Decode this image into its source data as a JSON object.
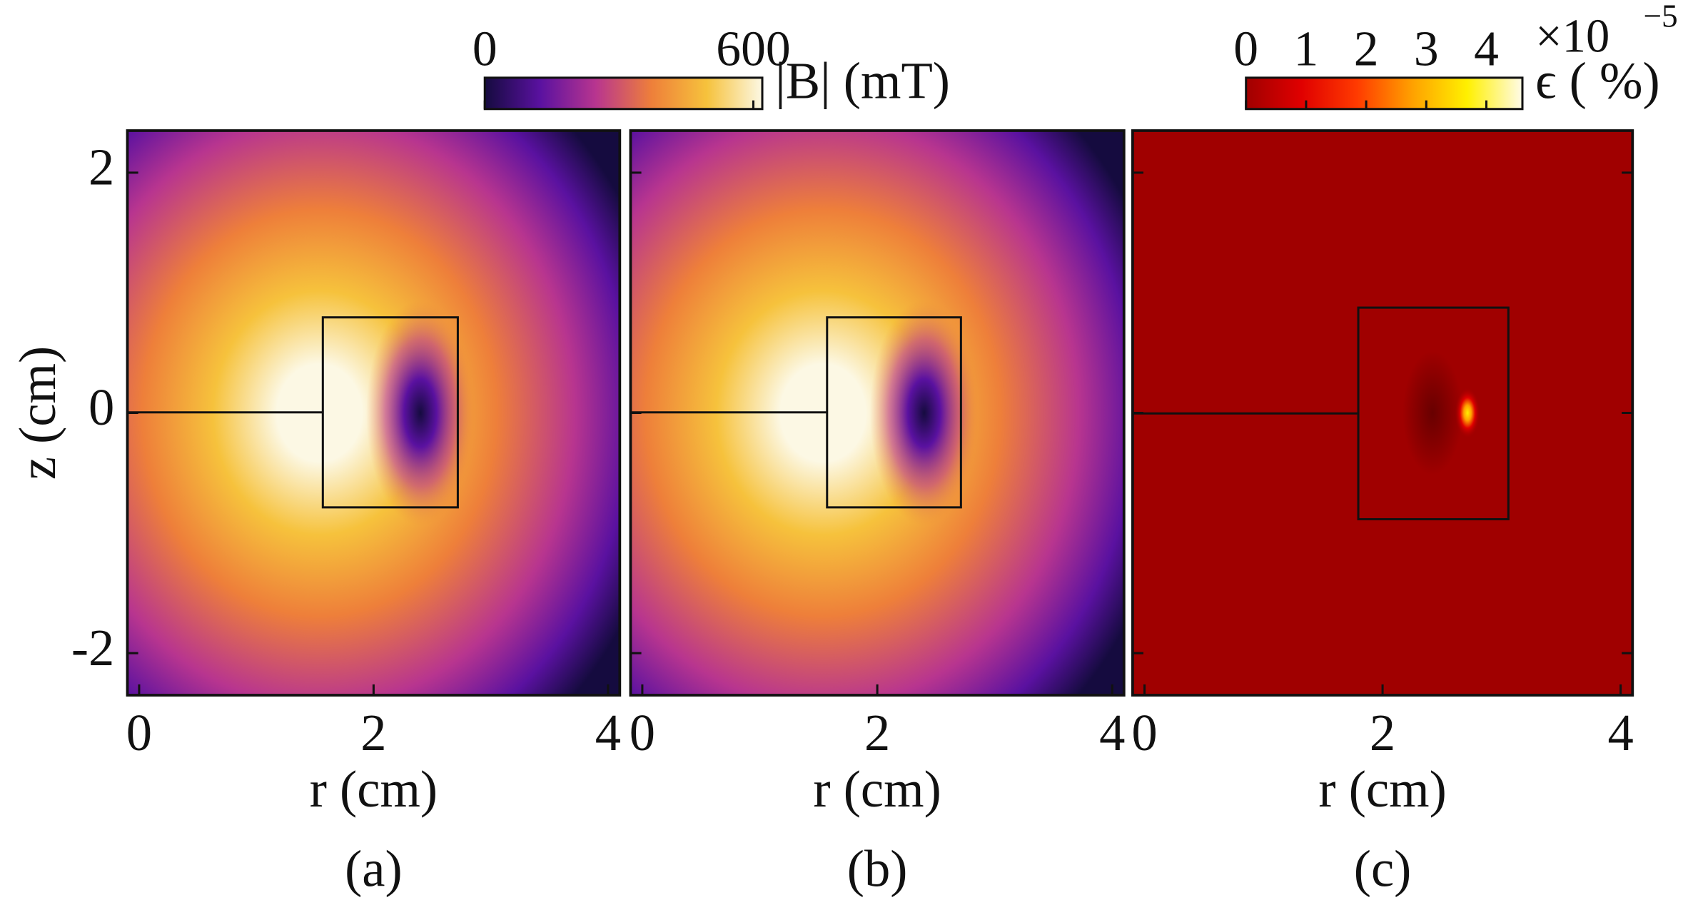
{
  "chart_data": [
    {
      "type": "heatmap",
      "xlabel": "r (cm)",
      "ylabel": "z (cm)",
      "caption": "(a)",
      "xlim": [
        -0.1,
        4.1
      ],
      "xticks": [
        0,
        2,
        4
      ],
      "ylim": [
        -2.35,
        2.35
      ],
      "yticks": [
        -2,
        0,
        2
      ],
      "ytick_labels": true,
      "mirror_ticks": false,
      "colormap": [
        "#150b3f",
        "#5a11a0",
        "#b8358f",
        "#ee7f3a",
        "#f6c23c",
        "#fcf8e4"
      ],
      "colorbar": {
        "label": "|B| (mT)",
        "lim": [
          0,
          620
        ],
        "ticks": [
          0,
          600
        ]
      }
    },
    {
      "type": "heatmap",
      "xlabel": "r (cm)",
      "caption": "(b)",
      "xlim": [
        -0.1,
        4.1
      ],
      "xticks": [
        0,
        2,
        4
      ],
      "ylim": [
        -2.35,
        2.35
      ],
      "yticks": [
        -2,
        0,
        2
      ],
      "ytick_labels": false,
      "mirror_ticks": false,
      "colormap": [
        "#150b3f",
        "#5a11a0",
        "#b8358f",
        "#ee7f3a",
        "#f6c23c",
        "#fcf8e4"
      ]
    },
    {
      "type": "heatmap",
      "xlabel": "r (cm)",
      "caption": "(c)",
      "xlim": [
        -0.1,
        4.1
      ],
      "xticks": [
        0,
        2,
        4
      ],
      "ylim": [
        -2.35,
        2.35
      ],
      "yticks": [
        -2,
        0,
        2
      ],
      "ytick_labels": false,
      "mirror_ticks": true,
      "colormap": [
        "#a00000",
        "#e00000",
        "#ff3a00",
        "#ffa000",
        "#fff000",
        "#fffbe8"
      ],
      "colorbar": {
        "label": "ϵ ( %)",
        "lim": [
          0,
          4.6
        ],
        "ticks": [
          0,
          1,
          2,
          3,
          4
        ],
        "multiplier": {
          "base": "×10",
          "exponent": "−5"
        }
      }
    }
  ]
}
